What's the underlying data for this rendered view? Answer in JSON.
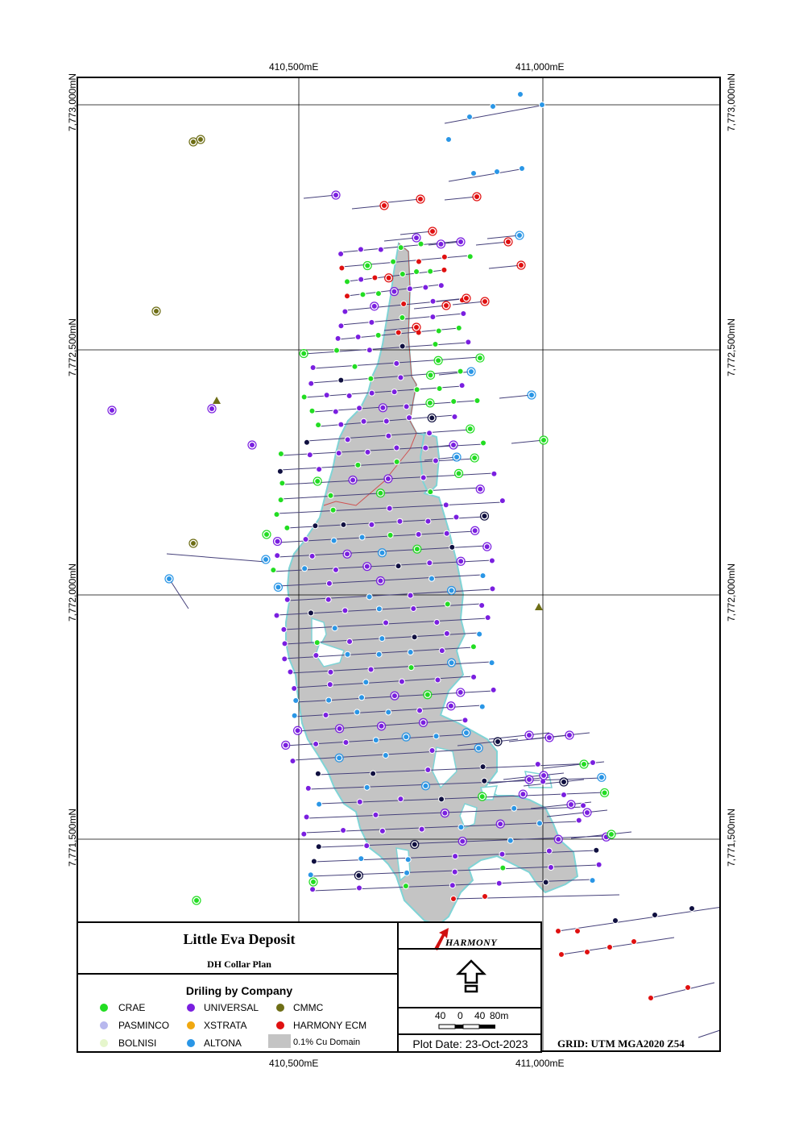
{
  "axis": {
    "easting_labels": [
      "410,500mE",
      "411,000mE"
    ],
    "northing_labels": [
      "7,773,000mN",
      "7,772,500mN",
      "7,772,000mN",
      "7,771,500mN"
    ]
  },
  "title": "Little Eva Deposit",
  "subtitle": "DH Collar Plan",
  "legend": {
    "heading": "Driling by Company",
    "items": [
      {
        "label": "CRAE",
        "color": "#22dd22"
      },
      {
        "label": "UNIVERSAL",
        "color": "#7a1fe0"
      },
      {
        "label": "CMMC",
        "color": "#6e6e16"
      },
      {
        "label": "PASMINCO",
        "color": "#b8b8ee"
      },
      {
        "label": "XSTRATA",
        "color": "#f0a810"
      },
      {
        "label": "HARMONY ECM",
        "color": "#e01010"
      },
      {
        "label": "BOLNISI",
        "color": "#e6f6cc"
      },
      {
        "label": "ALTONA",
        "color": "#2a96e6"
      },
      {
        "label": "0.1% Cu Domain",
        "color": "#c4c4c4"
      }
    ]
  },
  "logo": {
    "text": "HARMONY",
    "icon": "harmony-logo-icon"
  },
  "north_arrow": {
    "icon": "north-arrow-icon"
  },
  "scale_bar": {
    "labels": [
      "40",
      "0",
      "40",
      "80m"
    ]
  },
  "plot_date": "Plot Date: 23-Oct-2023",
  "grid": "GRID: UTM MGA2020 Z54",
  "colors": {
    "domain_fill": "#c4c4c4",
    "domain_outline": "#7fd4d6",
    "trace": "#45407a",
    "grid": "#000000"
  }
}
